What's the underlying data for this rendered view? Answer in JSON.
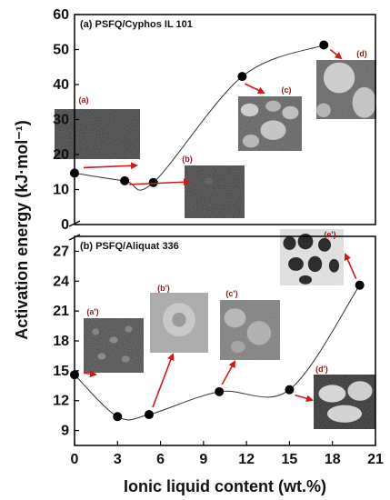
{
  "chart_data": [
    {
      "type": "line",
      "panel_label": "(a) PSFQ/Cyphos IL 101",
      "x": [
        0,
        3.5,
        5.5,
        11.7,
        17.4
      ],
      "y": [
        14.7,
        12.5,
        12.0,
        42.3,
        51.3
      ],
      "ylim": [
        0,
        60
      ],
      "yticks": [
        "0",
        "10",
        "20",
        "30",
        "40",
        "50",
        "60"
      ],
      "inset_labels": [
        "(a)",
        "(b)",
        "(c)",
        "(d)"
      ]
    },
    {
      "type": "line",
      "panel_label": "(b) PSFQ/Aliquat 336",
      "x": [
        0,
        3.0,
        5.2,
        10.1,
        15.0,
        19.9
      ],
      "y": [
        14.6,
        10.4,
        10.6,
        12.9,
        13.1,
        23.6
      ],
      "ylim": [
        7.5,
        28.5
      ],
      "yticks": [
        "9",
        "12",
        "15",
        "18",
        "21",
        "24",
        "27"
      ],
      "inset_labels": [
        "(a')",
        "(b')",
        "(c')",
        "(d')",
        "(e')"
      ]
    }
  ],
  "axes": {
    "xlabel": "Ionic liquid content (wt.%)",
    "ylabel": "Activation energy (kJ·mol⁻¹)",
    "xticks": [
      "0",
      "3",
      "6",
      "9",
      "12",
      "15",
      "18",
      "21"
    ],
    "xlim": [
      0,
      21
    ]
  },
  "colors": {
    "marker": "#000000",
    "arrow": "#d0191b",
    "curve": "#333333"
  }
}
